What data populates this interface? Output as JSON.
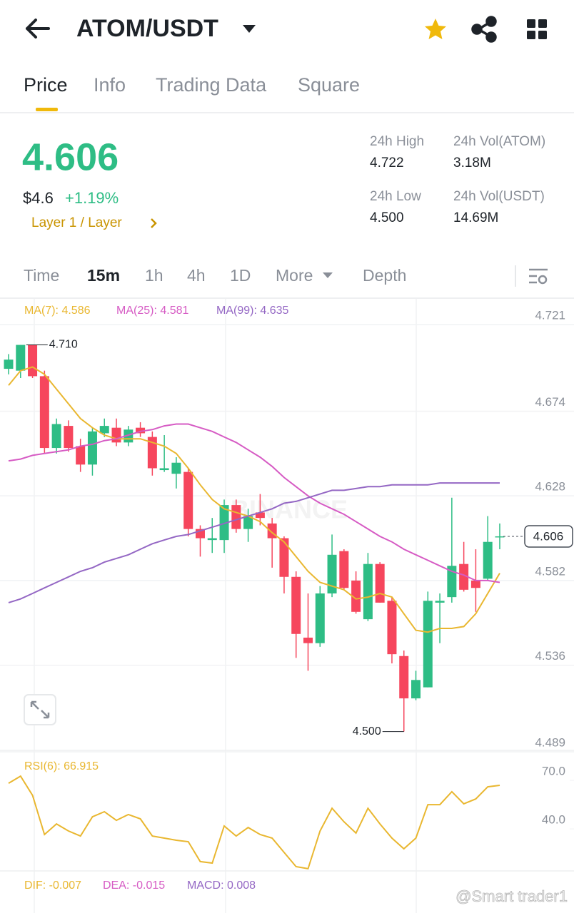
{
  "header": {
    "pair": "ATOM/USDT",
    "tabs": [
      "Price",
      "Info",
      "Trading Data",
      "Square"
    ]
  },
  "ticker": {
    "price": 4.606,
    "usd": "$4.6",
    "change": "+1.19%",
    "tag": "Layer 1 / Layer",
    "stats": [
      {
        "label": "24h High",
        "value": "4.722"
      },
      {
        "label": "24h Vol(ATOM)",
        "value": "3.18M"
      },
      {
        "label": "24h Low",
        "value": "4.500"
      },
      {
        "label": "24h Vol(USDT)",
        "value": "14.69M"
      }
    ]
  },
  "intervals": [
    "Time",
    "15m",
    "1h",
    "4h",
    "1D",
    "More",
    "Depth"
  ],
  "chart_data": {
    "type": "candlestick",
    "up_color": "#2ebd85",
    "down_color": "#f6465d",
    "ylim": [
      4.4886,
      4.735
    ],
    "yticks": [
      4.721,
      4.674,
      4.628,
      4.582,
      4.536,
      4.489
    ],
    "grid": true,
    "last_price": 4.606,
    "watermark": "BINANCE",
    "annotations": [
      {
        "value": 4.71,
        "label": "4.710"
      },
      {
        "value": 4.5,
        "label": "4.500"
      }
    ],
    "candles": [
      {
        "open": 4.697,
        "high": 4.705,
        "low": 4.694,
        "close": 4.702
      },
      {
        "open": 4.696,
        "high": 4.71,
        "low": 4.692,
        "close": 4.71
      },
      {
        "open": 4.71,
        "high": 4.71,
        "low": 4.692,
        "close": 4.693
      },
      {
        "open": 4.693,
        "high": 4.696,
        "low": 4.651,
        "close": 4.654
      },
      {
        "open": 4.654,
        "high": 4.67,
        "low": 4.651,
        "close": 4.667
      },
      {
        "open": 4.666,
        "high": 4.669,
        "low": 4.652,
        "close": 4.654
      },
      {
        "open": 4.655,
        "high": 4.659,
        "low": 4.641,
        "close": 4.645
      },
      {
        "open": 4.645,
        "high": 4.665,
        "low": 4.639,
        "close": 4.663
      },
      {
        "open": 4.662,
        "high": 4.67,
        "low": 4.66,
        "close": 4.666
      },
      {
        "open": 4.665,
        "high": 4.67,
        "low": 4.655,
        "close": 4.657
      },
      {
        "open": 4.657,
        "high": 4.666,
        "low": 4.655,
        "close": 4.664
      },
      {
        "open": 4.665,
        "high": 4.668,
        "low": 4.66,
        "close": 4.662
      },
      {
        "open": 4.66,
        "high": 4.663,
        "low": 4.639,
        "close": 4.643
      },
      {
        "open": 4.642,
        "high": 4.661,
        "low": 4.641,
        "close": 4.643
      },
      {
        "open": 4.64,
        "high": 4.649,
        "low": 4.632,
        "close": 4.646
      },
      {
        "open": 4.641,
        "high": 4.643,
        "low": 4.606,
        "close": 4.61
      },
      {
        "open": 4.61,
        "high": 4.612,
        "low": 4.595,
        "close": 4.605
      },
      {
        "open": 4.604,
        "high": 4.616,
        "low": 4.597,
        "close": 4.605
      },
      {
        "open": 4.604,
        "high": 4.626,
        "low": 4.597,
        "close": 4.623
      },
      {
        "open": 4.623,
        "high": 4.626,
        "low": 4.608,
        "close": 4.61
      },
      {
        "open": 4.61,
        "high": 4.621,
        "low": 4.603,
        "close": 4.617
      },
      {
        "open": 4.619,
        "high": 4.629,
        "low": 4.612,
        "close": 4.616
      },
      {
        "open": 4.613,
        "high": 4.616,
        "low": 4.589,
        "close": 4.605
      },
      {
        "open": 4.605,
        "high": 4.606,
        "low": 4.575,
        "close": 4.584
      },
      {
        "open": 4.584,
        "high": 4.587,
        "low": 4.54,
        "close": 4.553
      },
      {
        "open": 4.551,
        "high": 4.575,
        "low": 4.533,
        "close": 4.548
      },
      {
        "open": 4.548,
        "high": 4.579,
        "low": 4.546,
        "close": 4.575
      },
      {
        "open": 4.575,
        "high": 4.607,
        "low": 4.573,
        "close": 4.596
      },
      {
        "open": 4.598,
        "high": 4.599,
        "low": 4.577,
        "close": 4.578
      },
      {
        "open": 4.582,
        "high": 4.587,
        "low": 4.564,
        "close": 4.565
      },
      {
        "open": 4.561,
        "high": 4.597,
        "low": 4.56,
        "close": 4.591
      },
      {
        "open": 4.591,
        "high": 4.592,
        "low": 4.57,
        "close": 4.57
      },
      {
        "open": 4.571,
        "high": 4.573,
        "low": 4.537,
        "close": 4.542
      },
      {
        "open": 4.541,
        "high": 4.544,
        "low": 4.5,
        "close": 4.518
      },
      {
        "open": 4.518,
        "high": 4.533,
        "low": 4.517,
        "close": 4.528
      },
      {
        "open": 4.524,
        "high": 4.576,
        "low": 4.524,
        "close": 4.571
      },
      {
        "open": 4.57,
        "high": 4.575,
        "low": 4.548,
        "close": 4.571
      },
      {
        "open": 4.573,
        "high": 4.627,
        "low": 4.57,
        "close": 4.59
      },
      {
        "open": 4.591,
        "high": 4.603,
        "low": 4.576,
        "close": 4.577
      },
      {
        "open": 4.582,
        "high": 4.599,
        "low": 4.565,
        "close": 4.578
      },
      {
        "open": 4.583,
        "high": 4.617,
        "low": 4.582,
        "close": 4.603
      },
      {
        "open": 4.606,
        "high": 4.613,
        "low": 4.599,
        "close": 4.606
      }
    ],
    "series": [
      {
        "name": "MA(7): 4.586",
        "color": "#e9b730",
        "values": [
          4.688,
          4.696,
          4.698,
          4.694,
          4.686,
          4.678,
          4.67,
          4.665,
          4.661,
          4.659,
          4.659,
          4.659,
          4.657,
          4.655,
          4.651,
          4.643,
          4.634,
          4.626,
          4.621,
          4.619,
          4.617,
          4.614,
          4.608,
          4.603,
          4.595,
          4.587,
          4.581,
          4.579,
          4.577,
          4.572,
          4.573,
          4.575,
          4.573,
          4.564,
          4.555,
          4.554,
          4.556,
          4.556,
          4.557,
          4.564,
          4.575,
          4.586
        ]
      },
      {
        "name": "MA(25): 4.581",
        "color": "#d65bc4",
        "values": [
          4.647,
          4.648,
          4.65,
          4.651,
          4.652,
          4.653,
          4.655,
          4.656,
          4.658,
          4.659,
          4.661,
          4.663,
          4.664,
          4.666,
          4.667,
          4.667,
          4.665,
          4.663,
          4.66,
          4.657,
          4.653,
          4.649,
          4.644,
          4.638,
          4.633,
          4.628,
          4.624,
          4.621,
          4.618,
          4.614,
          4.61,
          4.606,
          4.603,
          4.599,
          4.596,
          4.593,
          4.59,
          4.587,
          4.585,
          4.582,
          4.582,
          4.581
        ]
      },
      {
        "name": "MA(99): 4.635",
        "color": "#9467c4",
        "values": [
          4.57,
          4.572,
          4.575,
          4.578,
          4.581,
          4.584,
          4.587,
          4.589,
          4.592,
          4.594,
          4.596,
          4.599,
          4.602,
          4.604,
          4.606,
          4.607,
          4.609,
          4.611,
          4.613,
          4.615,
          4.617,
          4.619,
          4.621,
          4.624,
          4.625,
          4.627,
          4.629,
          4.631,
          4.631,
          4.632,
          4.633,
          4.633,
          4.634,
          4.634,
          4.634,
          4.634,
          4.635,
          4.635,
          4.635,
          4.635,
          4.635,
          4.635
        ]
      }
    ],
    "rsi": {
      "name": "RSI(6): 66.915",
      "color": "#e9b730",
      "ylim": [
        13.6,
        87.2
      ],
      "yticks": [
        {
          "value": 70,
          "label": "70.0"
        },
        {
          "value": 40,
          "label": "40.0"
        }
      ],
      "values": [
        68.2,
        72.6,
        60.7,
        36.5,
        43.1,
        38.7,
        35.6,
        47.5,
        50.6,
        45.3,
        48.9,
        46.2,
        35.6,
        34.3,
        33.0,
        32.1,
        19.8,
        18.9,
        41.8,
        35.6,
        40.9,
        36.5,
        34.3,
        25.5,
        16.7,
        15.4,
        38.7,
        52.8,
        44.4,
        37.4,
        52.8,
        43.1,
        34.3,
        27.7,
        34.3,
        55.0,
        55.0,
        63.0,
        55.5,
        58.5,
        66.0,
        66.915
      ]
    },
    "macd_labels": [
      {
        "text": "DIF: -0.007",
        "color": "#e9b730"
      },
      {
        "text": "DEA: -0.015",
        "color": "#d65bc4"
      },
      {
        "text": "MACD: 0.008",
        "color": "#9467c4"
      }
    ]
  },
  "watermark": "@Smart trader1"
}
